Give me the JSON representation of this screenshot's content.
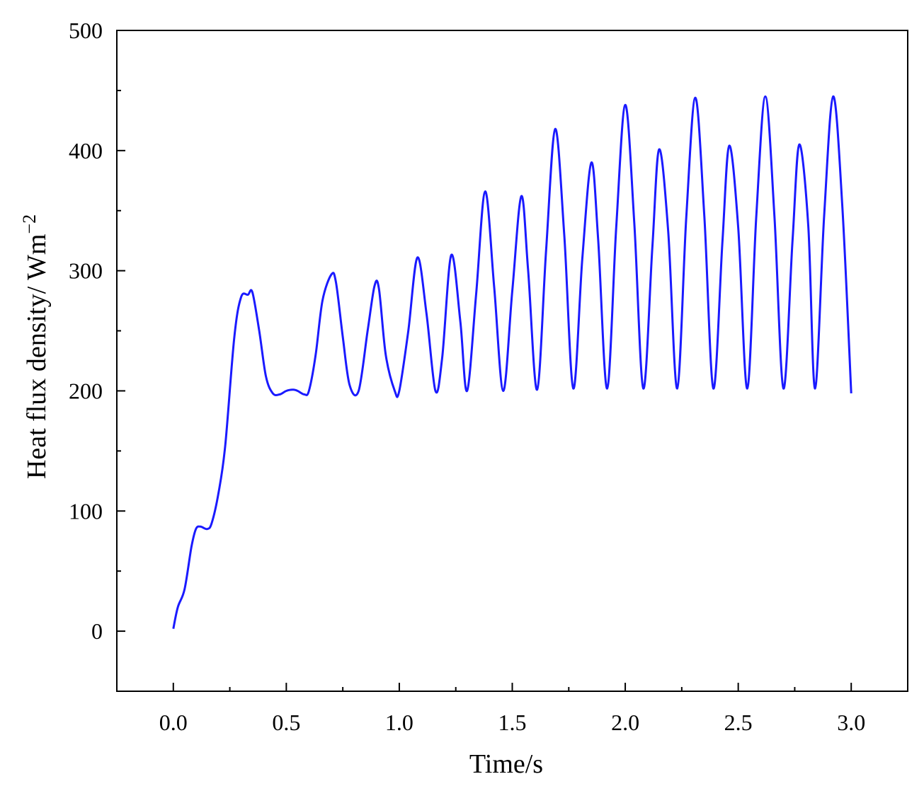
{
  "chart_data": {
    "type": "line",
    "xlabel": "Time/s",
    "ylabel": "Heat flux density/ Wm",
    "ylabel_superscript": "−2",
    "xlim": [
      -0.25,
      3.25
    ],
    "ylim": [
      -50,
      500
    ],
    "xticks": [
      0.0,
      0.5,
      1.0,
      1.5,
      2.0,
      2.5,
      3.0
    ],
    "xtick_labels": [
      "0.0",
      "0.5",
      "1.0",
      "1.5",
      "2.0",
      "2.5",
      "3.0"
    ],
    "yticks": [
      0,
      100,
      200,
      300,
      400,
      500
    ],
    "ytick_labels": [
      "0",
      "100",
      "200",
      "300",
      "400",
      "500"
    ],
    "grid": false,
    "series": [
      {
        "color": "#1a1aff",
        "x": [
          0.0,
          0.02,
          0.05,
          0.08,
          0.1,
          0.12,
          0.15,
          0.17,
          0.2,
          0.23,
          0.27,
          0.3,
          0.33,
          0.35,
          0.38,
          0.41,
          0.44,
          0.47,
          0.5,
          0.53,
          0.55,
          0.58,
          0.6,
          0.63,
          0.66,
          0.7,
          0.72,
          0.75,
          0.78,
          0.82,
          0.86,
          0.89,
          0.91,
          0.94,
          0.98,
          1.0,
          1.04,
          1.08,
          1.12,
          1.16,
          1.19,
          1.23,
          1.27,
          1.3,
          1.34,
          1.38,
          1.42,
          1.46,
          1.5,
          1.54,
          1.57,
          1.61,
          1.65,
          1.69,
          1.73,
          1.77,
          1.81,
          1.85,
          1.88,
          1.92,
          1.96,
          2.0,
          2.04,
          2.08,
          2.12,
          2.15,
          2.19,
          2.23,
          2.27,
          2.31,
          2.35,
          2.39,
          2.43,
          2.46,
          2.5,
          2.54,
          2.58,
          2.62,
          2.66,
          2.7,
          2.74,
          2.77,
          2.81,
          2.84,
          2.88,
          2.92,
          2.96,
          3.0
        ],
        "y": [
          2,
          20,
          35,
          70,
          85,
          87,
          85,
          90,
          115,
          155,
          245,
          278,
          280,
          282,
          250,
          212,
          198,
          197,
          200,
          201,
          200,
          197,
          200,
          230,
          275,
          297,
          290,
          245,
          205,
          200,
          250,
          287,
          285,
          230,
          200,
          200,
          250,
          311,
          265,
          200,
          228,
          313,
          258,
          200,
          280,
          366,
          286,
          200,
          283,
          362,
          301,
          201,
          318,
          418,
          330,
          202,
          310,
          390,
          326,
          202,
          336,
          438,
          340,
          202,
          320,
          401,
          333,
          202,
          344,
          444,
          345,
          202,
          324,
          404,
          336,
          202,
          346,
          445,
          346,
          202,
          324,
          405,
          337,
          202,
          345,
          445,
          356,
          198
        ]
      }
    ]
  }
}
